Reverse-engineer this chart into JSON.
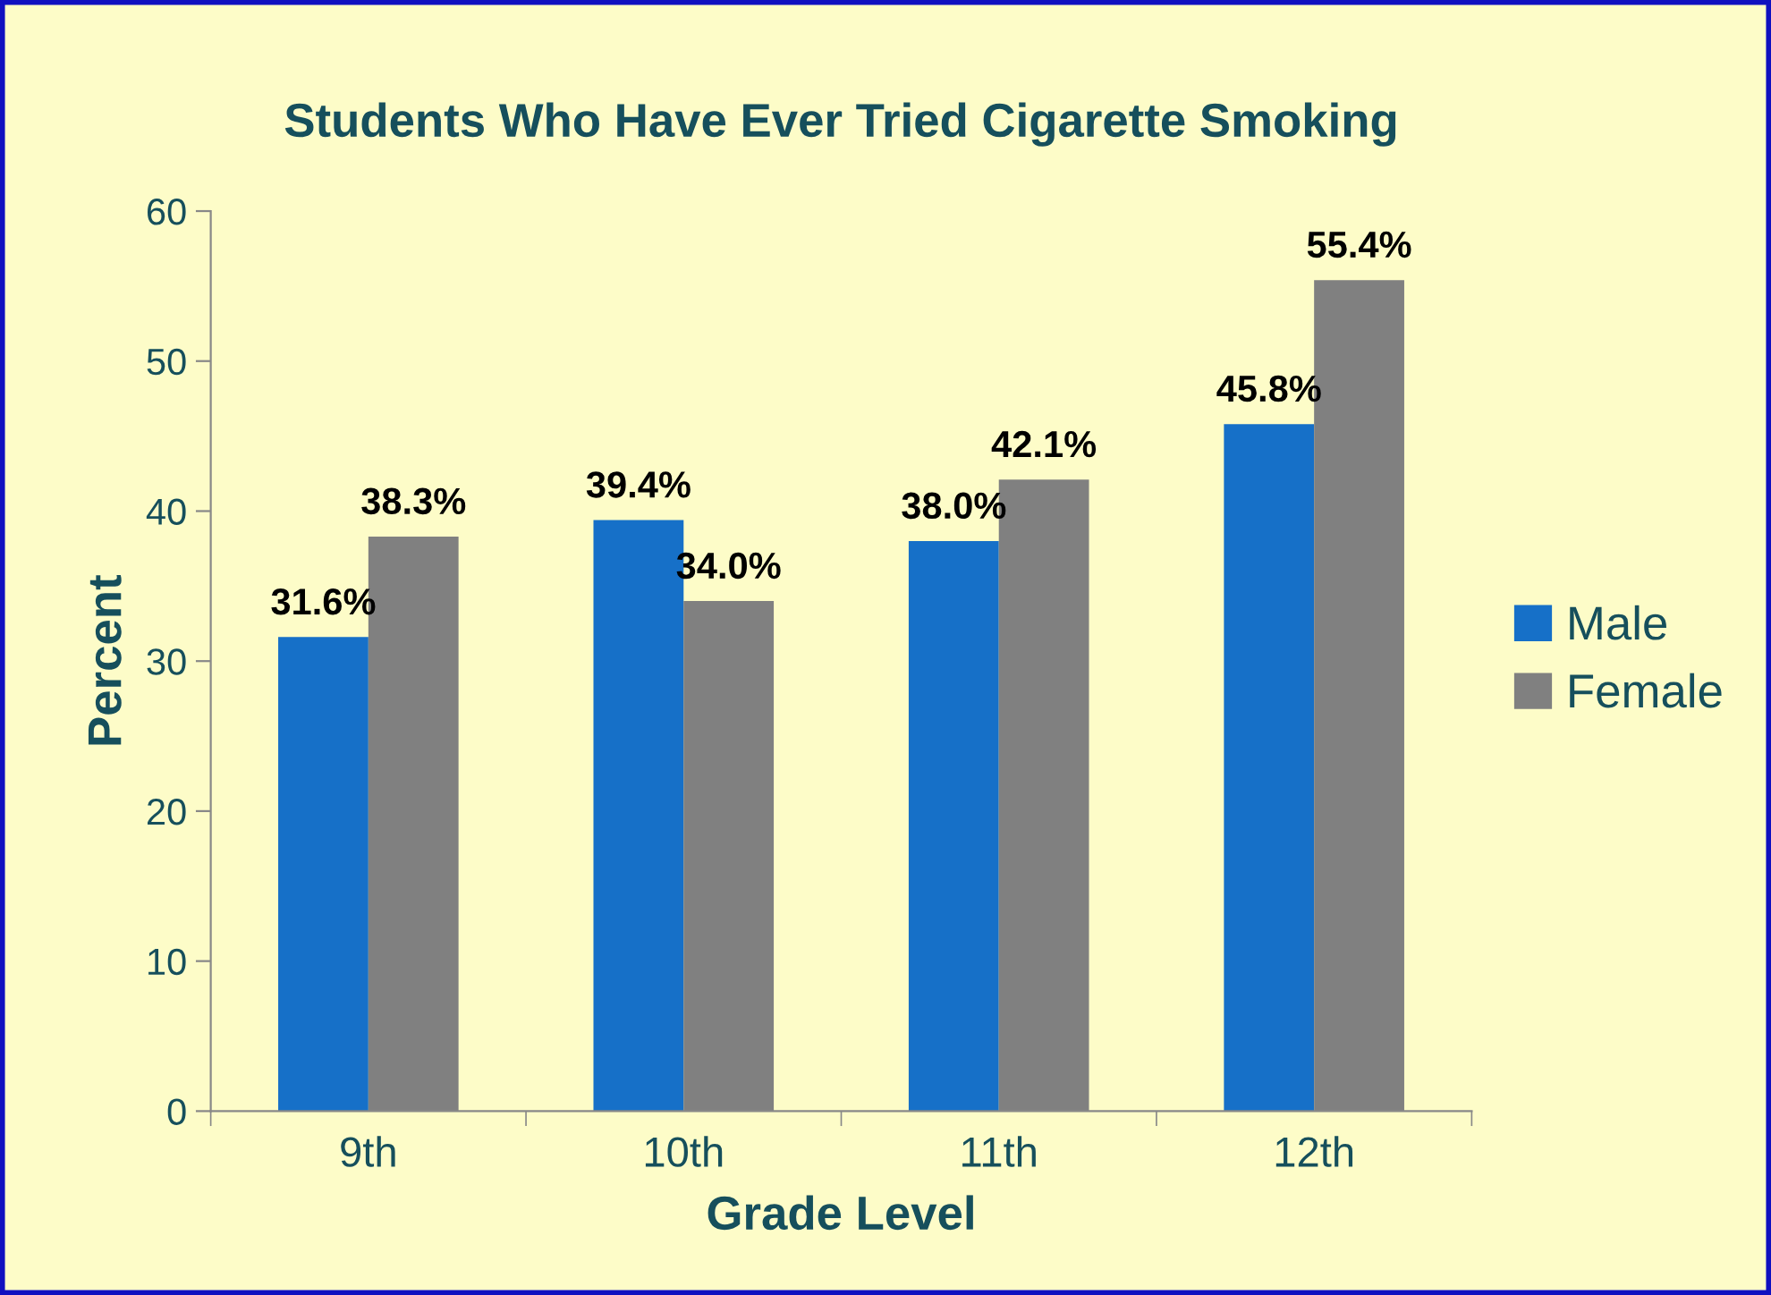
{
  "chart_data": {
    "type": "bar",
    "title": "Students Who Have Ever Tried Cigarette Smoking",
    "xlabel": "Grade Level",
    "ylabel": "Percent",
    "categories": [
      "9th",
      "10th",
      "11th",
      "12th"
    ],
    "series": [
      {
        "name": "Male",
        "color": "#1670c8",
        "values": [
          31.6,
          39.4,
          38.0,
          45.8
        ],
        "value_labels": [
          "31.6%",
          "39.4%",
          "38.0%",
          "45.8%"
        ]
      },
      {
        "name": "Female",
        "color": "#808080",
        "values": [
          38.3,
          34.0,
          42.1,
          55.4
        ],
        "value_labels": [
          "38.3%",
          "34.0%",
          "42.1%",
          "55.4%"
        ]
      }
    ],
    "ylim": [
      0,
      60
    ],
    "yticks": [
      0,
      10,
      20,
      30,
      40,
      50,
      60
    ],
    "grid": false,
    "legend": "right"
  }
}
